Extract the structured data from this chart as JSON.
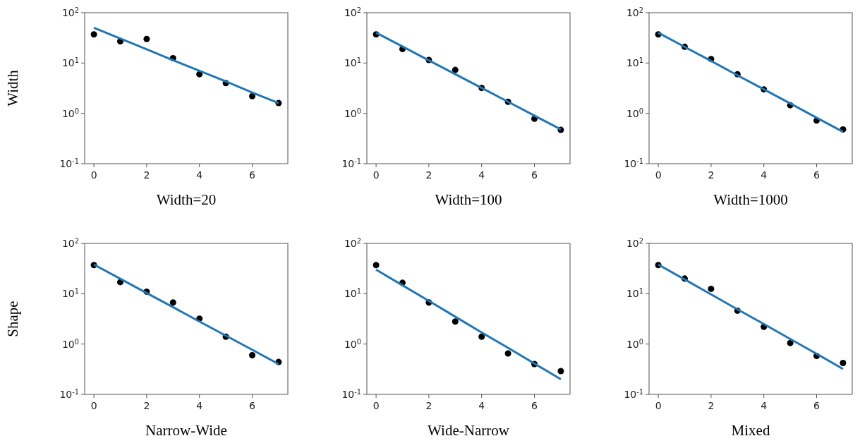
{
  "chart_data": [
    {
      "type": "scatter",
      "ylabel": "Width",
      "xlabel": "Width=20",
      "log": "y",
      "grid": false,
      "xlim": [
        -0.35,
        7.35
      ],
      "ylim": [
        0.1,
        100
      ],
      "xticks": [
        0,
        2,
        4,
        6
      ],
      "yticks": [
        {
          "value": 0.1,
          "label": "10$^{-1}$"
        },
        {
          "value": 1,
          "label": "10$^{0}$"
        },
        {
          "value": 10,
          "label": "10$^{1}$"
        },
        {
          "value": 100,
          "label": "10$^{2}$"
        }
      ],
      "x": [
        0,
        1,
        2,
        3,
        4,
        5,
        6,
        7
      ],
      "series": [
        {
          "type": "scatter",
          "marker": "circle",
          "color": "#000000",
          "values": [
            37,
            27,
            30,
            12.5,
            6,
            4,
            2.2,
            1.6
          ]
        },
        {
          "type": "line",
          "marker": "none",
          "color": "#1f77b4",
          "values": [
            50,
            30.6,
            18.7,
            11.4,
            7.0,
            4.3,
            2.6,
            1.6
          ]
        }
      ]
    },
    {
      "type": "scatter",
      "xlabel": "Width=100",
      "log": "y",
      "grid": false,
      "xlim": [
        -0.35,
        7.35
      ],
      "ylim": [
        0.1,
        100
      ],
      "xticks": [
        0,
        2,
        4,
        6
      ],
      "yticks": [
        {
          "value": 0.1,
          "label": "10$^{-1}$"
        },
        {
          "value": 1,
          "label": "10$^{0}$"
        },
        {
          "value": 10,
          "label": "10$^{1}$"
        },
        {
          "value": 100,
          "label": "10$^{2}$"
        }
      ],
      "x": [
        0,
        1,
        2,
        3,
        4,
        5,
        6,
        7
      ],
      "series": [
        {
          "type": "scatter",
          "marker": "circle",
          "color": "#000000",
          "values": [
            37,
            19,
            11.5,
            7.3,
            3.2,
            1.7,
            0.78,
            0.47
          ]
        },
        {
          "type": "line",
          "marker": "none",
          "color": "#1f77b4",
          "values": [
            40,
            21.3,
            11.3,
            6.0,
            3.2,
            1.7,
            0.9,
            0.48
          ]
        }
      ]
    },
    {
      "type": "scatter",
      "xlabel": "Width=1000",
      "log": "y",
      "grid": false,
      "xlim": [
        -0.35,
        7.35
      ],
      "ylim": [
        0.1,
        100
      ],
      "xticks": [
        0,
        2,
        4,
        6
      ],
      "yticks": [
        {
          "value": 0.1,
          "label": "10$^{-1}$"
        },
        {
          "value": 1,
          "label": "10$^{0}$"
        },
        {
          "value": 10,
          "label": "10$^{1}$"
        },
        {
          "value": 100,
          "label": "10$^{2}$"
        }
      ],
      "x": [
        0,
        1,
        2,
        3,
        4,
        5,
        6,
        7
      ],
      "series": [
        {
          "type": "scatter",
          "marker": "circle",
          "color": "#000000",
          "values": [
            37,
            21,
            12,
            6,
            3,
            1.45,
            0.72,
            0.48
          ]
        },
        {
          "type": "line",
          "marker": "none",
          "color": "#1f77b4",
          "values": [
            40,
            20.9,
            11.0,
            5.7,
            3.0,
            1.57,
            0.82,
            0.43
          ]
        }
      ]
    },
    {
      "type": "scatter",
      "ylabel": "Shape",
      "xlabel": "Narrow-Wide",
      "log": "y",
      "grid": false,
      "xlim": [
        -0.35,
        7.35
      ],
      "ylim": [
        0.1,
        100
      ],
      "xticks": [
        0,
        2,
        4,
        6
      ],
      "yticks": [
        {
          "value": 0.1,
          "label": "10$^{-1}$"
        },
        {
          "value": 1,
          "label": "10$^{0}$"
        },
        {
          "value": 10,
          "label": "10$^{1}$"
        },
        {
          "value": 100,
          "label": "10$^{2}$"
        }
      ],
      "x": [
        0,
        1,
        2,
        3,
        4,
        5,
        6,
        7
      ],
      "series": [
        {
          "type": "scatter",
          "marker": "circle",
          "color": "#000000",
          "values": [
            37,
            17,
            11,
            6.7,
            3.2,
            1.4,
            0.6,
            0.44
          ]
        },
        {
          "type": "line",
          "marker": "none",
          "color": "#1f77b4",
          "values": [
            38,
            19.8,
            10.3,
            5.4,
            2.8,
            1.47,
            0.77,
            0.4
          ]
        }
      ]
    },
    {
      "type": "scatter",
      "xlabel": "Wide-Narrow",
      "log": "y",
      "grid": false,
      "xlim": [
        -0.35,
        7.35
      ],
      "ylim": [
        0.1,
        100
      ],
      "xticks": [
        0,
        2,
        4,
        6
      ],
      "yticks": [
        {
          "value": 0.1,
          "label": "10$^{-1}$"
        },
        {
          "value": 1,
          "label": "10$^{0}$"
        },
        {
          "value": 10,
          "label": "10$^{1}$"
        },
        {
          "value": 100,
          "label": "10$^{2}$"
        }
      ],
      "x": [
        0,
        1,
        2,
        3,
        4,
        5,
        6,
        7
      ],
      "series": [
        {
          "type": "scatter",
          "marker": "circle",
          "color": "#000000",
          "values": [
            37,
            16.5,
            6.7,
            2.8,
            1.4,
            0.65,
            0.4,
            0.29
          ]
        },
        {
          "type": "line",
          "marker": "none",
          "color": "#1f77b4",
          "values": [
            30,
            14.7,
            7.2,
            3.5,
            1.7,
            0.84,
            0.41,
            0.2
          ]
        }
      ]
    },
    {
      "type": "scatter",
      "xlabel": "Mixed",
      "log": "y",
      "grid": false,
      "xlim": [
        -0.35,
        7.35
      ],
      "ylim": [
        0.1,
        100
      ],
      "xticks": [
        0,
        2,
        4,
        6
      ],
      "yticks": [
        {
          "value": 0.1,
          "label": "10$^{-1}$"
        },
        {
          "value": 1,
          "label": "10$^{0}$"
        },
        {
          "value": 10,
          "label": "10$^{1}$"
        },
        {
          "value": 100,
          "label": "10$^{2}$"
        }
      ],
      "x": [
        0,
        1,
        2,
        3,
        4,
        5,
        6,
        7
      ],
      "series": [
        {
          "type": "scatter",
          "marker": "circle",
          "color": "#000000",
          "values": [
            37,
            20,
            12.5,
            4.6,
            2.2,
            1.05,
            0.58,
            0.42
          ]
        },
        {
          "type": "line",
          "marker": "none",
          "color": "#1f77b4",
          "values": [
            38,
            19.2,
            9.7,
            4.9,
            2.5,
            1.26,
            0.64,
            0.32
          ]
        }
      ]
    }
  ]
}
